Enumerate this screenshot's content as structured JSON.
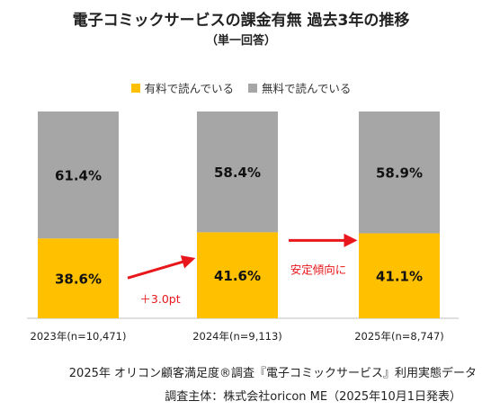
{
  "chart_data": {
    "type": "bar",
    "stacked": true,
    "title": "電子コミックサービスの課金有無 過去3年の推移",
    "subtitle": "（単一回答）",
    "categories": [
      "2023年(n=10,471)",
      "2024年(n=9,113)",
      "2025年(n=8,747)"
    ],
    "series": [
      {
        "name": "有料で読んでいる",
        "color": "#FFC000",
        "values": [
          38.6,
          41.6,
          41.1
        ],
        "labels": [
          "38.6%",
          "41.6%",
          "41.1%"
        ]
      },
      {
        "name": "無料で読んでいる",
        "color": "#A6A6A6",
        "values": [
          61.4,
          58.4,
          58.9
        ],
        "labels": [
          "61.4%",
          "58.4%",
          "58.9%"
        ]
      }
    ],
    "ylim": [
      0,
      100
    ],
    "legend_position": "top",
    "annotations": [
      {
        "text": "＋3.0pt",
        "between": [
          0,
          1
        ],
        "color": "#E8171B"
      },
      {
        "text": "安定傾向に",
        "between": [
          1,
          2
        ],
        "color": "#E8171B"
      }
    ]
  },
  "footnote": {
    "line1": "2025年 オリコン顧客満足度®調査『電子コミックサービス』利用実態データ",
    "line2": "調査主体：株式会社oricon ME（2025年10月1日発表）"
  }
}
